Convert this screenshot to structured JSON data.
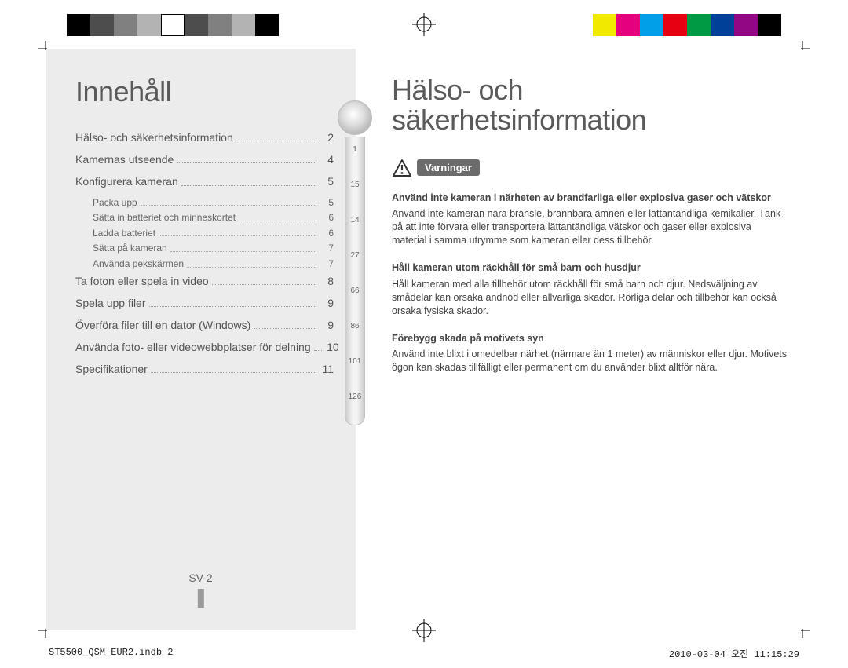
{
  "reg_colors_left": [
    "#000000",
    "#4d4d4d",
    "#808080",
    "#b3b3b3",
    "#ffffff",
    "#4d4d4d",
    "#808080",
    "#b3b3b3",
    "#000000"
  ],
  "reg_colors_right": [
    "#f2e900",
    "#e4007f",
    "#00a0e9",
    "#e60012",
    "#009944",
    "#004098",
    "#920783",
    "#000000"
  ],
  "left": {
    "title": "Innehåll",
    "toc": [
      {
        "label": "Hälso- och säkerhetsinformation",
        "page": "2",
        "sub": false
      },
      {
        "label": "Kamernas utseende",
        "page": "4",
        "sub": false
      },
      {
        "label": "Konfigurera kameran",
        "page": "5",
        "sub": false
      },
      {
        "label": "Packa upp",
        "page": "5",
        "sub": true
      },
      {
        "label": "Sätta in batteriet och minneskortet",
        "page": "6",
        "sub": true
      },
      {
        "label": "Ladda batteriet",
        "page": "6",
        "sub": true
      },
      {
        "label": "Sätta på kameran",
        "page": "7",
        "sub": true
      },
      {
        "label": "Använda pekskärmen",
        "page": "7",
        "sub": true
      },
      {
        "label": "Ta foton eller spela in video",
        "page": "8",
        "sub": false
      },
      {
        "label": "Spela upp filer",
        "page": "9",
        "sub": false
      },
      {
        "label": "Överföra filer till en dator (Windows)",
        "page": "9",
        "sub": false
      },
      {
        "label": "Använda foto- eller videowebbplatser för delning",
        "page": "10",
        "sub": false
      },
      {
        "label": "Specifikationer",
        "page": "11",
        "sub": false
      }
    ],
    "page_label": "SV-2",
    "dial_ticks": [
      "1",
      "15",
      "14",
      "27",
      "66",
      "86",
      "101",
      "126"
    ]
  },
  "right": {
    "title_l1": "Hälso- och",
    "title_l2": "säkerhetsinformation",
    "badge": "Varningar",
    "sections": [
      {
        "head": "Använd inte kameran i närheten av brandfarliga eller explosiva gaser och vätskor",
        "body": "Använd inte kameran nära bränsle, brännbara ämnen eller lättantändliga kemikalier. Tänk på att inte förvara eller transportera lättantändliga vätskor och gaser eller explosiva material i samma utrymme som kameran eller dess tillbehör."
      },
      {
        "head": "Håll kameran utom räckhåll för små barn och husdjur",
        "body": "Håll kameran med alla tillbehör utom räckhåll för små barn och djur. Nedsväljning av smådelar kan orsaka andnöd eller allvarliga skador. Rörliga delar och tillbehör kan också orsaka fysiska skador."
      },
      {
        "head": "Förebygg skada på motivets syn",
        "body": "Använd inte blixt i omedelbar närhet (närmare än 1 meter) av människor eller djur. Motivets ögon kan skadas tillfälligt eller permanent om du använder blixt alltför nära."
      }
    ]
  },
  "footer": {
    "file": "ST5500_QSM_EUR2.indb   2",
    "stamp": "2010-03-04   오전 11:15:29"
  }
}
